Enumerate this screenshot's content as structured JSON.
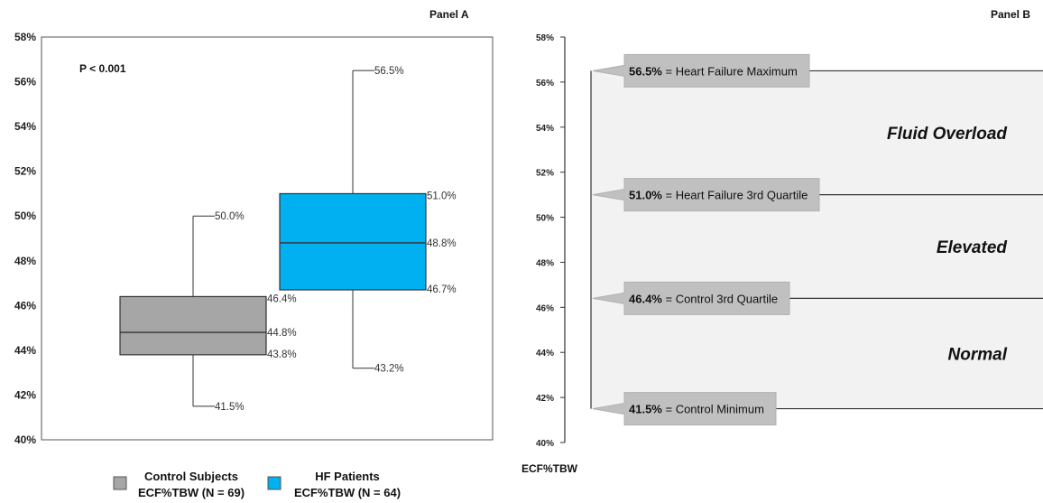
{
  "chart_data": [
    {
      "type": "box",
      "panel_label": "Panel A",
      "annotation": "P < 0.001",
      "ylim": [
        40,
        58
      ],
      "y_ticks": [
        "40%",
        "42%",
        "44%",
        "46%",
        "48%",
        "50%",
        "52%",
        "54%",
        "56%",
        "58%"
      ],
      "series": [
        {
          "name": "Control Subjects",
          "name_line2": "ECF%TBW (N = 69)",
          "color": "#a6a6a6",
          "min": 41.5,
          "q1": 43.8,
          "median": 44.8,
          "q3": 46.4,
          "max": 50.0,
          "labels": {
            "min": "41.5%",
            "q1": "43.8%",
            "median": "44.8%",
            "q3": "46.4%",
            "max": "50.0%"
          }
        },
        {
          "name": "HF Patients",
          "name_line2": "ECF%TBW (N = 64)",
          "color": "#00b0f0",
          "min": 43.2,
          "q1": 46.7,
          "median": 48.8,
          "q3": 51.0,
          "max": 56.5,
          "labels": {
            "min": "43.2%",
            "q1": "46.7%",
            "median": "48.8%",
            "q3": "51.0%",
            "max": "56.5%"
          }
        }
      ]
    },
    {
      "type": "threshold-scale",
      "panel_label": "Panel B",
      "ylabel": "ECF%TBW",
      "ylim": [
        40,
        58
      ],
      "y_ticks": [
        "40%",
        "42%",
        "44%",
        "46%",
        "48%",
        "50%",
        "52%",
        "54%",
        "56%",
        "58%"
      ],
      "thresholds": [
        {
          "value": 56.5,
          "bold": "56.5%",
          "text": " = Heart Failure Maximum"
        },
        {
          "value": 51.0,
          "bold": "51.0%",
          "text": " = Heart Failure 3rd Quartile"
        },
        {
          "value": 46.4,
          "bold": "46.4%",
          "text": " = Control 3rd Quartile"
        },
        {
          "value": 41.5,
          "bold": "41.5%",
          "text": " = Control Minimum"
        }
      ],
      "zones": [
        {
          "label": "Fluid Overload",
          "from": 51.0,
          "to": 56.5
        },
        {
          "label": "Elevated",
          "from": 46.4,
          "to": 51.0
        },
        {
          "label": "Normal",
          "from": 41.5,
          "to": 46.4
        }
      ]
    }
  ]
}
